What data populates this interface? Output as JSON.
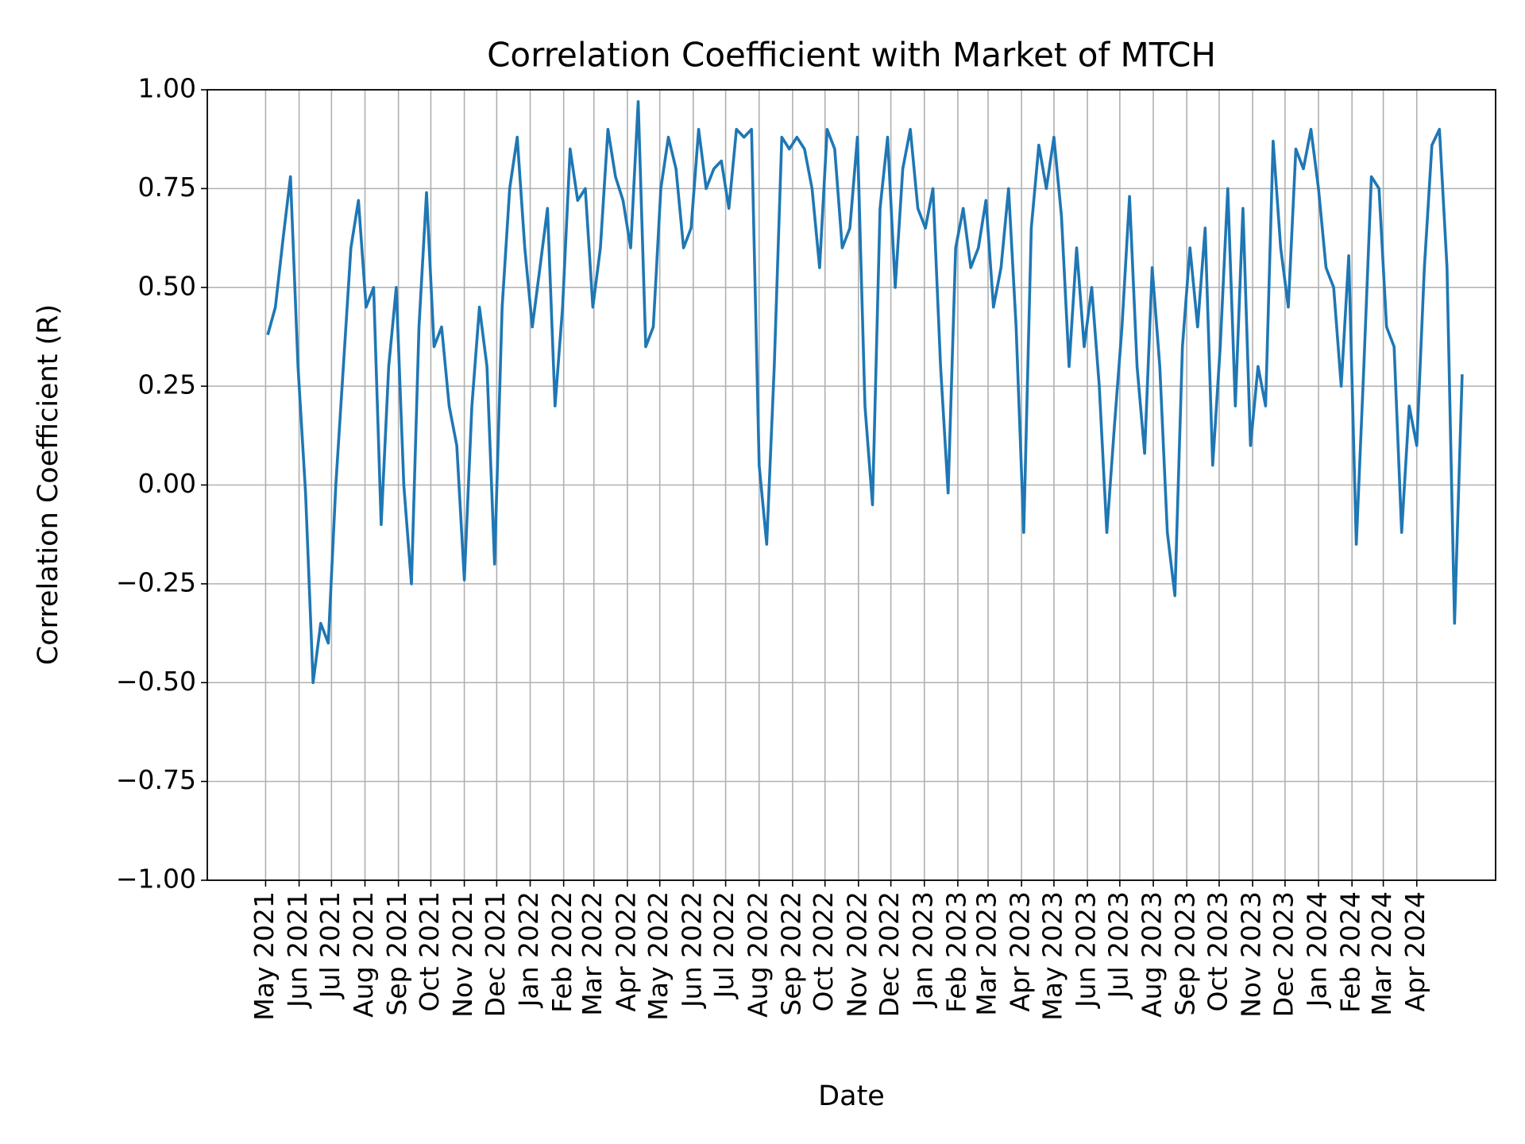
{
  "chart_data": {
    "type": "line",
    "title": "Correlation Coefficient with Market of MTCH",
    "x_label": "Date",
    "y_label": "Correlation Coefficient (R)",
    "grid": true,
    "xlim": [
      "2021-03-08",
      "2024-06-13"
    ],
    "ylim": [
      -1,
      1
    ],
    "yticks": [
      {
        "value": -1,
        "label": "−1.00"
      },
      {
        "value": -0.75,
        "label": "−0.75"
      },
      {
        "value": -0.5,
        "label": "−0.50"
      },
      {
        "value": -0.25,
        "label": "−0.25"
      },
      {
        "value": 0,
        "label": "0.00"
      },
      {
        "value": 0.25,
        "label": "0.25"
      },
      {
        "value": 0.5,
        "label": "0.50"
      },
      {
        "value": 0.75,
        "label": "0.75"
      },
      {
        "value": 1,
        "label": "1.00"
      }
    ],
    "xticks": [
      {
        "value": "2021-05-01",
        "label": "May 2021"
      },
      {
        "value": "2021-06-01",
        "label": "Jun 2021"
      },
      {
        "value": "2021-07-01",
        "label": "Jul 2021"
      },
      {
        "value": "2021-08-01",
        "label": "Aug 2021"
      },
      {
        "value": "2021-09-01",
        "label": "Sep 2021"
      },
      {
        "value": "2021-10-01",
        "label": "Oct 2021"
      },
      {
        "value": "2021-11-01",
        "label": "Nov 2021"
      },
      {
        "value": "2021-12-01",
        "label": "Dec 2021"
      },
      {
        "value": "2022-01-01",
        "label": "Jan 2022"
      },
      {
        "value": "2022-02-01",
        "label": "Feb 2022"
      },
      {
        "value": "2022-03-01",
        "label": "Mar 2022"
      },
      {
        "value": "2022-04-01",
        "label": "Apr 2022"
      },
      {
        "value": "2022-05-01",
        "label": "May 2022"
      },
      {
        "value": "2022-06-01",
        "label": "Jun 2022"
      },
      {
        "value": "2022-07-01",
        "label": "Jul 2022"
      },
      {
        "value": "2022-08-01",
        "label": "Aug 2022"
      },
      {
        "value": "2022-09-01",
        "label": "Sep 2022"
      },
      {
        "value": "2022-10-01",
        "label": "Oct 2022"
      },
      {
        "value": "2022-11-01",
        "label": "Nov 2022"
      },
      {
        "value": "2022-12-01",
        "label": "Dec 2022"
      },
      {
        "value": "2023-01-01",
        "label": "Jan 2023"
      },
      {
        "value": "2023-02-01",
        "label": "Feb 2023"
      },
      {
        "value": "2023-03-01",
        "label": "Mar 2023"
      },
      {
        "value": "2023-04-01",
        "label": "Apr 2023"
      },
      {
        "value": "2023-05-01",
        "label": "May 2023"
      },
      {
        "value": "2023-06-01",
        "label": "Jun 2023"
      },
      {
        "value": "2023-07-01",
        "label": "Jul 2023"
      },
      {
        "value": "2023-08-01",
        "label": "Aug 2023"
      },
      {
        "value": "2023-09-01",
        "label": "Sep 2023"
      },
      {
        "value": "2023-10-01",
        "label": "Oct 2023"
      },
      {
        "value": "2023-11-01",
        "label": "Nov 2023"
      },
      {
        "value": "2023-12-01",
        "label": "Dec 2023"
      },
      {
        "value": "2024-01-01",
        "label": "Jan 2024"
      },
      {
        "value": "2024-02-01",
        "label": "Feb 2024"
      },
      {
        "value": "2024-03-01",
        "label": "Mar 2024"
      },
      {
        "value": "2024-04-01",
        "label": "Apr 2024"
      }
    ],
    "x": [
      "2021-05-03",
      "2021-05-10",
      "2021-05-17",
      "2021-05-24",
      "2021-05-31",
      "2021-06-07",
      "2021-06-14",
      "2021-06-21",
      "2021-06-28",
      "2021-07-05",
      "2021-07-12",
      "2021-07-19",
      "2021-07-26",
      "2021-08-02",
      "2021-08-09",
      "2021-08-16",
      "2021-08-23",
      "2021-08-30",
      "2021-09-06",
      "2021-09-13",
      "2021-09-20",
      "2021-09-27",
      "2021-10-04",
      "2021-10-11",
      "2021-10-18",
      "2021-10-25",
      "2021-11-01",
      "2021-11-08",
      "2021-11-15",
      "2021-11-22",
      "2021-11-29",
      "2021-12-06",
      "2021-12-13",
      "2021-12-20",
      "2021-12-27",
      "2022-01-03",
      "2022-01-10",
      "2022-01-17",
      "2022-01-24",
      "2022-01-31",
      "2022-02-07",
      "2022-02-14",
      "2022-02-21",
      "2022-02-28",
      "2022-03-07",
      "2022-03-14",
      "2022-03-21",
      "2022-03-28",
      "2022-04-04",
      "2022-04-11",
      "2022-04-18",
      "2022-04-25",
      "2022-05-02",
      "2022-05-09",
      "2022-05-16",
      "2022-05-23",
      "2022-05-30",
      "2022-06-06",
      "2022-06-13",
      "2022-06-20",
      "2022-06-27",
      "2022-07-04",
      "2022-07-11",
      "2022-07-18",
      "2022-07-25",
      "2022-08-01",
      "2022-08-08",
      "2022-08-15",
      "2022-08-22",
      "2022-08-29",
      "2022-09-05",
      "2022-09-12",
      "2022-09-19",
      "2022-09-26",
      "2022-10-03",
      "2022-10-10",
      "2022-10-17",
      "2022-10-24",
      "2022-10-31",
      "2022-11-07",
      "2022-11-14",
      "2022-11-21",
      "2022-11-28",
      "2022-12-05",
      "2022-12-12",
      "2022-12-19",
      "2022-12-26",
      "2023-01-02",
      "2023-01-09",
      "2023-01-16",
      "2023-01-23",
      "2023-01-30",
      "2023-02-06",
      "2023-02-13",
      "2023-02-20",
      "2023-02-27",
      "2023-03-06",
      "2023-03-13",
      "2023-03-20",
      "2023-03-27",
      "2023-04-03",
      "2023-04-10",
      "2023-04-17",
      "2023-04-24",
      "2023-05-01",
      "2023-05-08",
      "2023-05-15",
      "2023-05-22",
      "2023-05-29",
      "2023-06-05",
      "2023-06-12",
      "2023-06-19",
      "2023-06-26",
      "2023-07-03",
      "2023-07-10",
      "2023-07-17",
      "2023-07-24",
      "2023-07-31",
      "2023-08-07",
      "2023-08-14",
      "2023-08-21",
      "2023-08-28",
      "2023-09-04",
      "2023-09-11",
      "2023-09-18",
      "2023-09-25",
      "2023-10-02",
      "2023-10-09",
      "2023-10-16",
      "2023-10-23",
      "2023-10-30",
      "2023-11-06",
      "2023-11-13",
      "2023-11-20",
      "2023-11-27",
      "2023-12-04",
      "2023-12-11",
      "2023-12-18",
      "2023-12-25",
      "2024-01-01",
      "2024-01-08",
      "2024-01-15",
      "2024-01-22",
      "2024-01-29",
      "2024-02-05",
      "2024-02-12",
      "2024-02-19",
      "2024-02-26",
      "2024-03-04",
      "2024-03-11",
      "2024-03-18",
      "2024-03-25",
      "2024-04-01",
      "2024-04-08",
      "2024-04-15",
      "2024-04-22",
      "2024-04-29",
      "2024-05-06",
      "2024-05-13"
    ],
    "series": [
      {
        "color": "#1f77b4",
        "values": [
          0.38,
          0.45,
          0.62,
          0.78,
          0.3,
          -0.02,
          -0.5,
          -0.35,
          -0.4,
          0.0,
          0.3,
          0.6,
          0.72,
          0.45,
          0.5,
          -0.1,
          0.3,
          0.5,
          0.0,
          -0.25,
          0.4,
          0.74,
          0.35,
          0.4,
          0.2,
          0.1,
          -0.24,
          0.2,
          0.45,
          0.3,
          -0.2,
          0.45,
          0.75,
          0.88,
          0.6,
          0.4,
          0.55,
          0.7,
          0.2,
          0.45,
          0.85,
          0.72,
          0.75,
          0.45,
          0.6,
          0.9,
          0.78,
          0.72,
          0.6,
          0.97,
          0.35,
          0.4,
          0.75,
          0.88,
          0.8,
          0.6,
          0.65,
          0.9,
          0.75,
          0.8,
          0.82,
          0.7,
          0.9,
          0.88,
          0.9,
          0.05,
          -0.15,
          0.3,
          0.88,
          0.85,
          0.88,
          0.85,
          0.75,
          0.55,
          0.9,
          0.85,
          0.6,
          0.65,
          0.88,
          0.2,
          -0.05,
          0.7,
          0.88,
          0.5,
          0.8,
          0.9,
          0.7,
          0.65,
          0.75,
          0.3,
          -0.02,
          0.6,
          0.7,
          0.55,
          0.6,
          0.72,
          0.45,
          0.55,
          0.75,
          0.4,
          -0.12,
          0.65,
          0.86,
          0.75,
          0.88,
          0.68,
          0.3,
          0.6,
          0.35,
          0.5,
          0.25,
          -0.12,
          0.15,
          0.4,
          0.73,
          0.3,
          0.08,
          0.55,
          0.3,
          -0.12,
          -0.28,
          0.35,
          0.6,
          0.4,
          0.65,
          0.05,
          0.35,
          0.75,
          0.2,
          0.7,
          0.1,
          0.3,
          0.2,
          0.87,
          0.6,
          0.45,
          0.85,
          0.8,
          0.9,
          0.75,
          0.55,
          0.5,
          0.25,
          0.58,
          -0.15,
          0.3,
          0.78,
          0.75,
          0.4,
          0.35,
          -0.12,
          0.2,
          0.1,
          0.55,
          0.86,
          0.9,
          0.55,
          -0.35,
          0.28
        ]
      }
    ]
  }
}
